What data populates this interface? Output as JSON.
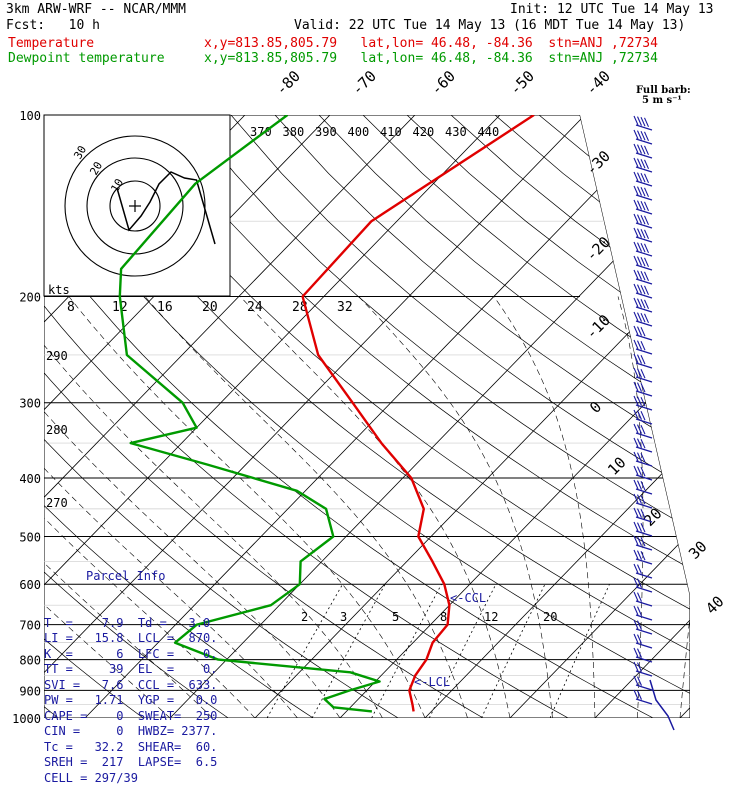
{
  "header": {
    "title": "3km ARW-WRF -- NCAR/MMM",
    "init": "Init: 12 UTC Tue 14 May 13",
    "fcst": "Fcst:   10 h",
    "valid": "Valid: 22 UTC Tue 14 May 13 (16 MDT Tue 14 May 13)",
    "temp_label": "Temperature",
    "temp_info": "x,y=813.85,805.79   lat,lon= 46.48, -84.36  stn=ANJ ,72734",
    "dew_label": "Dewpoint temperature",
    "dew_info": "x,y=813.85,805.79   lat,lon= 46.48, -84.36  stn=ANJ ,72734"
  },
  "barb_legend": {
    "line1": "Full barb:",
    "line2": "5 m s⁻¹"
  },
  "parcel_info": {
    "title": "Parcel Info",
    "rows": [
      "T  =    7.9  Td =   3.0",
      "LI =   15.8  LCL =  870.",
      "K  =      6  LFC =    0.",
      "TT =     39  EL  =    0.",
      "SVI =   7.6  CCL =  633.",
      "PW =   1.71  YGP =   0.0",
      "CAPE =    0  SWEAT=  250",
      "CIN =     0  HWBZ= 2377.",
      "Tc =   32.2  SHEAR=  60.",
      "SREH =  217  LAPSE=  6.5",
      "CELL = 297/39"
    ]
  },
  "chart_data": {
    "type": "line",
    "title": "",
    "ylabel": "",
    "pressure_levels": [
      100,
      200,
      300,
      400,
      500,
      600,
      700,
      800,
      900,
      1000
    ],
    "temperature_tick_labels": [
      "-80",
      "-70",
      "-60",
      "-50",
      "-40",
      "-30",
      "-20",
      "-10",
      "0",
      "10",
      "20",
      "30",
      "40"
    ],
    "theta_labels": [
      "370",
      "380",
      "390",
      "400",
      "410",
      "420",
      "430",
      "440"
    ],
    "theta_left_labels": [
      "290",
      "280",
      "270"
    ],
    "mixing_ratio_labels": [
      "2",
      "3",
      "5",
      "8",
      "12",
      "20"
    ],
    "hodograph": {
      "units": "kts",
      "speed_labels": [
        "8",
        "12",
        "16",
        "20",
        "24",
        "28",
        "32"
      ],
      "ring_labels": [
        "10",
        "20",
        "30"
      ],
      "path": [
        [
          -0.4,
          0.9
        ],
        [
          0.4,
          0.2
        ],
        [
          1.0,
          -0.5
        ],
        [
          1.6,
          -1.4
        ],
        [
          2.4,
          -2.0
        ],
        [
          3.3,
          -1.7
        ],
        [
          4.1,
          -1.6
        ]
      ]
    },
    "annotations": [
      "<-CCL",
      "<-LCL"
    ],
    "series": [
      {
        "name": "Temperature",
        "color": "#e00000",
        "points": [
          [
            100,
            -46.0
          ],
          [
            150,
            -53.0
          ],
          [
            200,
            -52.5
          ],
          [
            250,
            -44.0
          ],
          [
            300,
            -34.5
          ],
          [
            350,
            -26.5
          ],
          [
            400,
            -19.0
          ],
          [
            450,
            -14.0
          ],
          [
            500,
            -11.5
          ],
          [
            550,
            -7.0
          ],
          [
            600,
            -3.0
          ],
          [
            650,
            0.0
          ],
          [
            700,
            2.0
          ],
          [
            750,
            2.3
          ],
          [
            800,
            3.5
          ],
          [
            850,
            4.0
          ],
          [
            900,
            5.0
          ],
          [
            950,
            7.0
          ],
          [
            975,
            7.9
          ]
        ]
      },
      {
        "name": "Dewpoint temperature",
        "color": "#009a00",
        "points": [
          [
            100,
            -75.0
          ],
          [
            130,
            -78.0
          ],
          [
            180,
            -77.0
          ],
          [
            200,
            -74.0
          ],
          [
            250,
            -66.5
          ],
          [
            300,
            -54.5
          ],
          [
            330,
            -50.0
          ],
          [
            350,
            -56.0
          ],
          [
            380,
            -44.5
          ],
          [
            420,
            -31.0
          ],
          [
            450,
            -25.5
          ],
          [
            500,
            -21.5
          ],
          [
            550,
            -22.5
          ],
          [
            600,
            -20.0
          ],
          [
            650,
            -21.0
          ],
          [
            700,
            -27.5
          ],
          [
            750,
            -28.0
          ],
          [
            800,
            -21.0
          ],
          [
            840,
            -4.0
          ],
          [
            870,
            0.5
          ],
          [
            900,
            -2.0
          ],
          [
            930,
            -4.0
          ],
          [
            960,
            -2.0
          ],
          [
            975,
            3.0
          ]
        ]
      }
    ],
    "wind_barbs_shown": true
  }
}
